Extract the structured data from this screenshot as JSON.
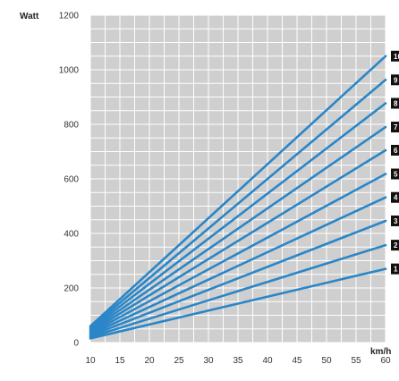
{
  "chart_data": {
    "type": "line",
    "title": "",
    "xlabel": "km/h",
    "ylabel": "Watt",
    "xlim": [
      10,
      60
    ],
    "ylim": [
      0,
      1200
    ],
    "x_ticks": [
      "10",
      "15",
      "20",
      "25",
      "30",
      "35",
      "40",
      "45",
      "50",
      "55",
      "60"
    ],
    "y_ticks": [
      "0",
      "200",
      "400",
      "600",
      "800",
      "1000",
      "1200"
    ],
    "grid": true,
    "x": [
      10,
      60
    ],
    "series": [
      {
        "badge": "1",
        "values": [
          15,
          270
        ]
      },
      {
        "badge": "2",
        "values": [
          20,
          357
        ]
      },
      {
        "badge": "3",
        "values": [
          25,
          446
        ]
      },
      {
        "badge": "4",
        "values": [
          30,
          532
        ]
      },
      {
        "badge": "5",
        "values": [
          35,
          618
        ]
      },
      {
        "badge": "6",
        "values": [
          40,
          705
        ]
      },
      {
        "badge": "7",
        "values": [
          45,
          790
        ]
      },
      {
        "badge": "8",
        "values": [
          50,
          877
        ]
      },
      {
        "badge": "9",
        "values": [
          55,
          963
        ]
      },
      {
        "badge": "10",
        "values": [
          60,
          1050
        ]
      }
    ],
    "colors": {
      "line": "#2a86c8",
      "plot_background": "#cfcfcf",
      "grid": "#ffffff",
      "badge": "#111111"
    }
  }
}
